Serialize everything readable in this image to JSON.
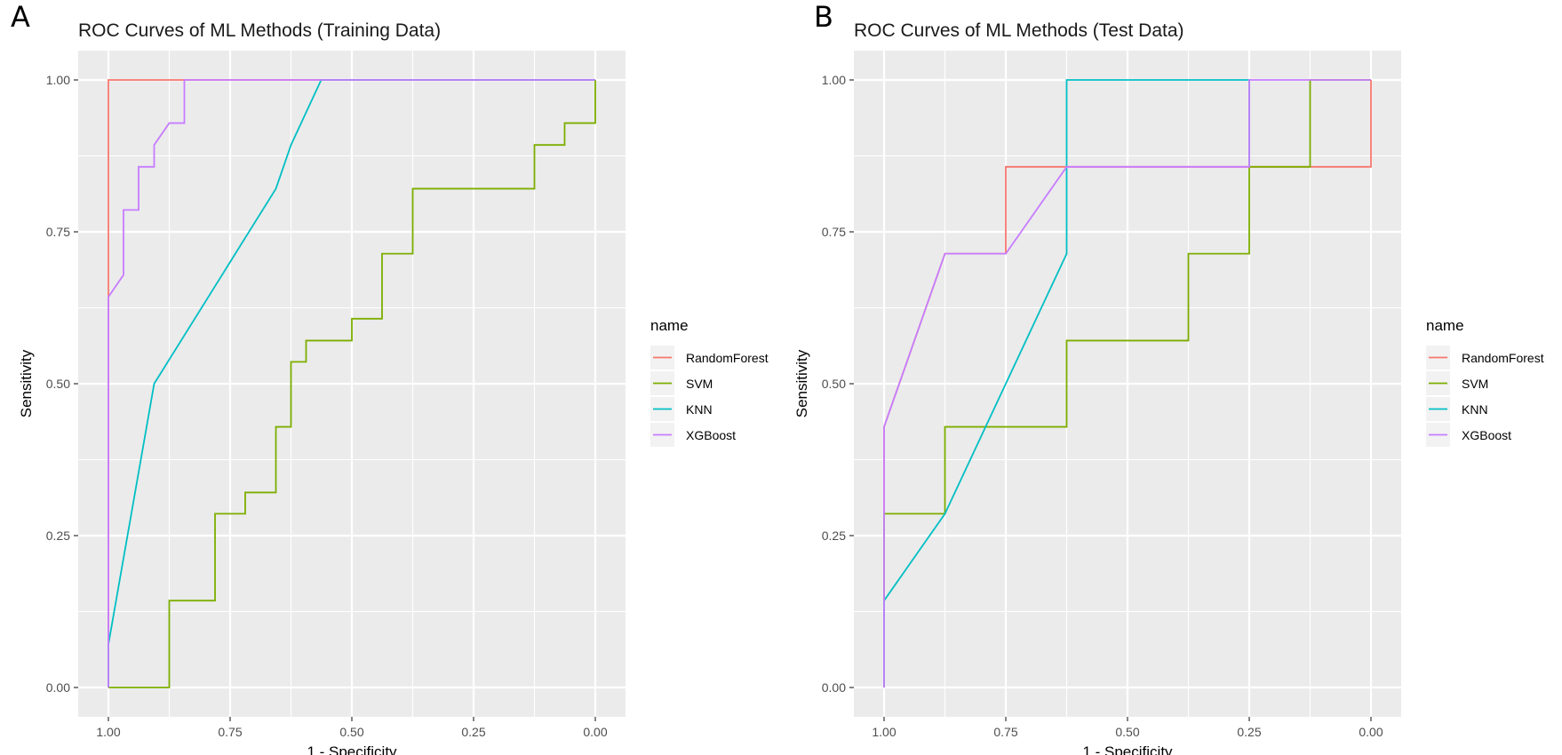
{
  "panels": [
    {
      "letter": "A",
      "title": "ROC Curves of ML Methods (Training Data)"
    },
    {
      "letter": "B",
      "title": "ROC Curves of ML Methods (Test Data)"
    }
  ],
  "chart_data": [
    {
      "type": "line",
      "title": "ROC Curves of ML Methods (Training Data)",
      "xlabel": "1 - Specificity",
      "ylabel": "Sensitivity",
      "xlim": [
        1.0,
        0.0
      ],
      "x_reversed": true,
      "ylim": [
        0.0,
        1.0
      ],
      "x_ticks": [
        "1.00",
        "0.75",
        "0.50",
        "0.25",
        "0.00"
      ],
      "y_ticks": [
        "0.00",
        "0.25",
        "0.50",
        "0.75",
        "1.00"
      ],
      "grid": true,
      "legend_title": "name",
      "legend_position": "right",
      "series": [
        {
          "name": "RandomForest",
          "color": "#F8766D",
          "points": [
            [
              1.0,
              0.0
            ],
            [
              1.0,
              0.643
            ],
            [
              1.0,
              1.0
            ],
            [
              0.844,
              1.0
            ],
            [
              0.0,
              1.0
            ]
          ]
        },
        {
          "name": "SVM",
          "color": "#7CAE00",
          "points": [
            [
              1.0,
              0.0
            ],
            [
              0.875,
              0.0
            ],
            [
              0.875,
              0.143
            ],
            [
              0.781,
              0.143
            ],
            [
              0.781,
              0.286
            ],
            [
              0.719,
              0.286
            ],
            [
              0.719,
              0.321
            ],
            [
              0.656,
              0.321
            ],
            [
              0.656,
              0.429
            ],
            [
              0.625,
              0.429
            ],
            [
              0.625,
              0.536
            ],
            [
              0.594,
              0.536
            ],
            [
              0.594,
              0.571
            ],
            [
              0.5,
              0.571
            ],
            [
              0.5,
              0.607
            ],
            [
              0.438,
              0.607
            ],
            [
              0.438,
              0.714
            ],
            [
              0.375,
              0.714
            ],
            [
              0.375,
              0.821
            ],
            [
              0.125,
              0.821
            ],
            [
              0.125,
              0.893
            ],
            [
              0.063,
              0.893
            ],
            [
              0.063,
              0.929
            ],
            [
              0.0,
              0.929
            ],
            [
              0.0,
              1.0
            ]
          ]
        },
        {
          "name": "KNN",
          "color": "#00BFC4",
          "points": [
            [
              1.0,
              0.0
            ],
            [
              1.0,
              0.071
            ],
            [
              0.906,
              0.5
            ],
            [
              0.656,
              0.821
            ],
            [
              0.625,
              0.893
            ],
            [
              0.563,
              1.0
            ],
            [
              0.0,
              1.0
            ]
          ]
        },
        {
          "name": "XGBoost",
          "color": "#C77CFF",
          "points": [
            [
              1.0,
              0.0
            ],
            [
              1.0,
              0.643
            ],
            [
              0.969,
              0.679
            ],
            [
              0.969,
              0.786
            ],
            [
              0.938,
              0.786
            ],
            [
              0.938,
              0.857
            ],
            [
              0.906,
              0.857
            ],
            [
              0.906,
              0.893
            ],
            [
              0.875,
              0.929
            ],
            [
              0.844,
              0.929
            ],
            [
              0.844,
              1.0
            ],
            [
              0.0,
              1.0
            ]
          ]
        }
      ]
    },
    {
      "type": "line",
      "title": "ROC Curves of ML Methods (Test Data)",
      "xlabel": "1 - Specificity",
      "ylabel": "Sensitivity",
      "xlim": [
        1.0,
        0.0
      ],
      "x_reversed": true,
      "ylim": [
        0.0,
        1.0
      ],
      "x_ticks": [
        "1.00",
        "0.75",
        "0.50",
        "0.25",
        "0.00"
      ],
      "y_ticks": [
        "0.00",
        "0.25",
        "0.50",
        "0.75",
        "1.00"
      ],
      "grid": true,
      "legend_title": "name",
      "legend_position": "right",
      "series": [
        {
          "name": "RandomForest",
          "color": "#F8766D",
          "points": [
            [
              1.0,
              0.0
            ],
            [
              1.0,
              0.429
            ],
            [
              0.875,
              0.714
            ],
            [
              0.75,
              0.714
            ],
            [
              0.75,
              0.857
            ],
            [
              0.0,
              0.857
            ],
            [
              0.0,
              1.0
            ]
          ]
        },
        {
          "name": "SVM",
          "color": "#7CAE00",
          "points": [
            [
              1.0,
              0.0
            ],
            [
              1.0,
              0.286
            ],
            [
              0.875,
              0.286
            ],
            [
              0.875,
              0.429
            ],
            [
              0.625,
              0.429
            ],
            [
              0.625,
              0.571
            ],
            [
              0.375,
              0.571
            ],
            [
              0.375,
              0.714
            ],
            [
              0.25,
              0.714
            ],
            [
              0.25,
              0.857
            ],
            [
              0.125,
              0.857
            ],
            [
              0.125,
              1.0
            ],
            [
              0.0,
              1.0
            ]
          ]
        },
        {
          "name": "KNN",
          "color": "#00BFC4",
          "points": [
            [
              1.0,
              0.0
            ],
            [
              1.0,
              0.143
            ],
            [
              0.875,
              0.286
            ],
            [
              0.625,
              0.714
            ],
            [
              0.625,
              1.0
            ],
            [
              0.25,
              1.0
            ],
            [
              0.25,
              0.857
            ]
          ]
        },
        {
          "name": "XGBoost",
          "color": "#C77CFF",
          "points": [
            [
              1.0,
              0.0
            ],
            [
              1.0,
              0.429
            ],
            [
              0.875,
              0.714
            ],
            [
              0.75,
              0.714
            ],
            [
              0.625,
              0.857
            ],
            [
              0.25,
              0.857
            ],
            [
              0.25,
              1.0
            ],
            [
              0.0,
              1.0
            ]
          ]
        }
      ]
    }
  ]
}
